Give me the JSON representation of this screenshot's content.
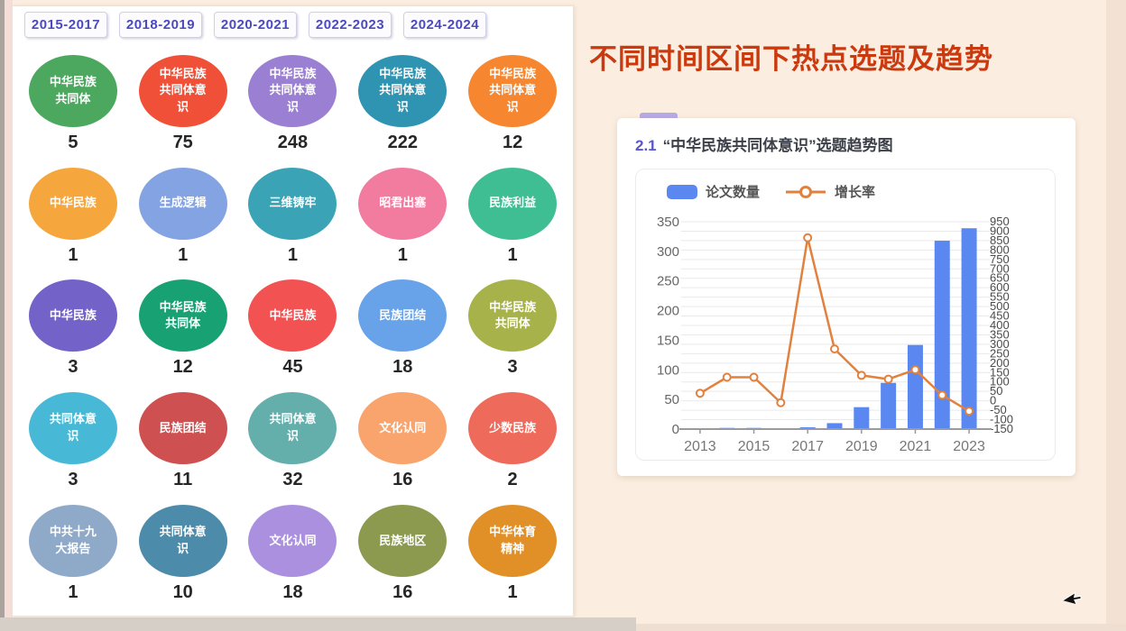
{
  "colors": {
    "page_background": "#fbeee1",
    "title_accent": "#cb3a0e",
    "bar_color": "#5b87f0",
    "line_color": "#e2813e",
    "tab_text": "#4b49c0"
  },
  "left_panel": {
    "tabs": [
      {
        "label": "2015-2017"
      },
      {
        "label": "2018-2019"
      },
      {
        "label": "2020-2021"
      },
      {
        "label": "2022-2023"
      },
      {
        "label": "2024-2024"
      }
    ],
    "bubbles": [
      {
        "label": "中华民族共同体",
        "value": "5",
        "color": "#4ba85e"
      },
      {
        "label": "中华民族共同体意识",
        "value": "75",
        "color": "#f04f38"
      },
      {
        "label": "中华民族共同体意识",
        "value": "248",
        "color": "#9b7fd2"
      },
      {
        "label": "中华民族共同体意识",
        "value": "222",
        "color": "#2f93b2"
      },
      {
        "label": "中华民族共同体意识",
        "value": "12",
        "color": "#f6862f"
      },
      {
        "label": "中华民族",
        "value": "1",
        "color": "#f5a63c"
      },
      {
        "label": "生成逻辑",
        "value": "1",
        "color": "#84a3e2"
      },
      {
        "label": "三维铸牢",
        "value": "1",
        "color": "#3aa4b6"
      },
      {
        "label": "昭君出塞",
        "value": "1",
        "color": "#f27ba0"
      },
      {
        "label": "民族利益",
        "value": "1",
        "color": "#3fbd93"
      },
      {
        "label": "中华民族",
        "value": "3",
        "color": "#7363c8"
      },
      {
        "label": "中华民族共同体",
        "value": "12",
        "color": "#18a173"
      },
      {
        "label": "中华民族",
        "value": "45",
        "color": "#f25352"
      },
      {
        "label": "民族团结",
        "value": "18",
        "color": "#68a3ea"
      },
      {
        "label": "中华民族共同体",
        "value": "3",
        "color": "#a7b24b"
      },
      {
        "label": "共同体意识",
        "value": "3",
        "color": "#47b9d6"
      },
      {
        "label": "民族团结",
        "value": "11",
        "color": "#ce5050"
      },
      {
        "label": "共同体意识",
        "value": "32",
        "color": "#64aeab"
      },
      {
        "label": "文化认同",
        "value": "16",
        "color": "#f9a36d"
      },
      {
        "label": "少数民族",
        "value": "2",
        "color": "#ee6a5b"
      },
      {
        "label": "中共十九大报告",
        "value": "1",
        "color": "#8fa9c8"
      },
      {
        "label": "共同体意识",
        "value": "10",
        "color": "#4c8ba9"
      },
      {
        "label": "文化认同",
        "value": "18",
        "color": "#ab90e0"
      },
      {
        "label": "民族地区",
        "value": "16",
        "color": "#8c9a4f"
      },
      {
        "label": "中华体育精神",
        "value": "1",
        "color": "#e19027"
      }
    ]
  },
  "right": {
    "title": "不同时间区间下热点选题及趋势",
    "card": {
      "section_number": "2.1",
      "section_title": "“中华民族共同体意识”选题趋势图",
      "legend": [
        {
          "label": "论文数量",
          "type": "bar",
          "color": "#5b87f0"
        },
        {
          "label": "增长率",
          "type": "line",
          "color": "#e2813e"
        }
      ]
    }
  },
  "chart_data": {
    "type": "bar",
    "title": "“中华民族共同体意识”选题趋势图",
    "x": [
      "2013",
      "2014",
      "2015",
      "2016",
      "2017",
      "2018",
      "2019",
      "2020",
      "2021",
      "2022",
      "2023"
    ],
    "x_shown_labels": [
      "2013",
      "2015",
      "2017",
      "2019",
      "2021",
      "2023"
    ],
    "series": [
      {
        "name": "论文数量",
        "type": "bar",
        "axis": "left",
        "color": "#5b87f0",
        "values": [
          1,
          2,
          2,
          1,
          3,
          10,
          37,
          78,
          142,
          318,
          339
        ]
      },
      {
        "name": "增长率",
        "type": "line",
        "axis": "right",
        "color": "#e2813e",
        "unit": "%",
        "values": [
          40,
          125,
          125,
          -10,
          865,
          275,
          135,
          115,
          165,
          30,
          -55
        ]
      }
    ],
    "left_axis": {
      "min": 0,
      "max": 350,
      "step": 50
    },
    "right_axis": {
      "min": -150,
      "max": 950,
      "step": 50
    },
    "grid": true,
    "legend_position": "top-left"
  }
}
